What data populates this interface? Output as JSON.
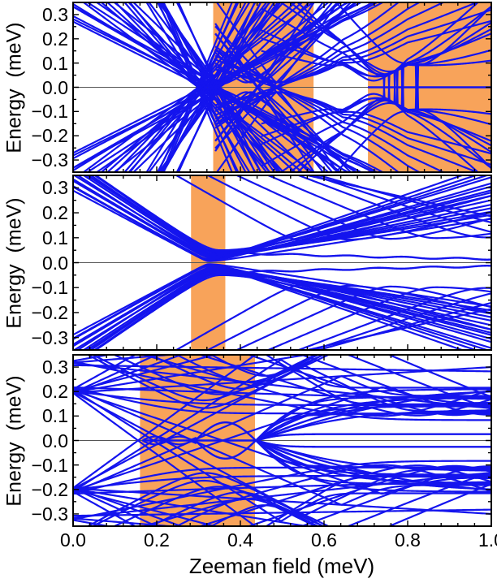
{
  "figure": {
    "xlabel": "Zeeman field (meV)",
    "ylabel": "Energy  (meV)"
  },
  "chart_data": {
    "type": "line",
    "title": "",
    "xlabel": "Zeeman field (meV)",
    "ylabel": "Energy  (meV)",
    "xlim": [
      0.0,
      1.0
    ],
    "ylim": [
      -0.35,
      0.35
    ],
    "x_ticks": [
      0.0,
      0.2,
      0.4,
      0.6,
      0.8,
      1.0
    ],
    "x_tick_labels": [
      "0.0",
      "0.2",
      "0.4",
      "0.6",
      "0.8",
      "1.0"
    ],
    "y_ticks": [
      0.3,
      0.2,
      0.1,
      0.0,
      -0.1,
      -0.2,
      -0.3
    ],
    "y_tick_labels": [
      "0.3",
      "0.2",
      "0.1",
      "0.0",
      "−0.1",
      "−0.2",
      "−0.3"
    ],
    "x_minor_step": 0.04,
    "y_minor_step": 0.05,
    "grid": "horizontal zero-energy line only",
    "legend": "none",
    "colors": {
      "line": "#1414ee",
      "shade": "#f8a35a",
      "zero_line": "#555555",
      "frame": "#000000",
      "background": "#ffffff"
    },
    "panels": [
      {
        "name": "top",
        "description": "Level fan converging to a gap closing at Vz=0.33, dense crossing levels beyond; gap reopens (white diamond near 0.63), second closing at 0.70, then topological gap ±0.09 with zero-energy Majorana line to 1.0.",
        "topological_regions": [
          [
            0.335,
            0.575
          ],
          [
            0.705,
            1.0
          ]
        ],
        "zero_energy_mode_x_range": [
          [
            0.705,
            1.0
          ]
        ],
        "gap_profile": [
          [
            0.575,
            0.0
          ],
          [
            0.645,
            0.058
          ],
          [
            0.703,
            0.004
          ],
          [
            0.8,
            0.092
          ],
          [
            1.0,
            0.085
          ]
        ],
        "families": [
          {
            "kind": "xfan",
            "x0": 0.325,
            "count": 30,
            "smin": 0.85,
            "smax": 4.2,
            "pow": 1.6,
            "x0_jitter": 0.03,
            "hyper_every": 3,
            "hyper_gap": 0.013
          },
          {
            "kind": "xfan",
            "x0": 0.46,
            "count": 14,
            "smin": 0.5,
            "smax": 2.6,
            "pow": 1.2,
            "x0_jitter": 0.05,
            "clip_min_x": 0.34,
            "hyper_every": 2,
            "hyper_gap": 0.02
          },
          {
            "kind": "xfan",
            "x0": 0.78,
            "count": 8,
            "smin": 0.4,
            "smax": 1.8,
            "pow": 1.0,
            "x0_jitter": 0.06,
            "clip_min_x": 0.45
          },
          {
            "kind": "zero",
            "x0": 0.705,
            "x1": 1.0
          }
        ]
      },
      {
        "name": "middle",
        "description": "Levels starting near ±0.3 converge to a near closing at Vz=0.335 (narrow orange band), then spread to the right leaving a clean gap with one low-energy split pair near ±0.02.",
        "topological_regions": [
          [
            0.282,
            0.364
          ]
        ],
        "zero_energy_mode_x_range": [],
        "families": [
          {
            "kind": "vcurve",
            "count": 15,
            "x0": [
              0.322,
              0.35
            ],
            "a": [
              0.9,
              1.2
            ],
            "b": [
              0.26,
              0.6
            ],
            "b_alt": true,
            "g": [
              0.006,
              0.05
            ],
            "shift": 0
          },
          {
            "kind": "vcurve",
            "count": 8,
            "x0": [
              0.55,
              1.3
            ],
            "a": [
              0.95,
              0.4
            ],
            "b": [
              0.3,
              0.5
            ],
            "g": [
              0.03,
              0.05
            ],
            "shift": 0.06
          },
          {
            "kind": "pair",
            "x0": 0.365,
            "x1": 1.0,
            "e_start": 0.04,
            "e_end": 0.015,
            "wobble": 0.003
          }
        ]
      },
      {
        "name": "bottom",
        "description": "Bundles at ±0.2 fan out; wide orange topological band 0.16-0.435 with zero mode and oscillating lens (±0.075) around zero; gap closing point at 0.435 from which levels fan out and flatten, near-zero pair ±0.025 to the right.",
        "topological_regions": [
          [
            0.16,
            0.435
          ]
        ],
        "zero_energy_mode_x_range": [
          [
            0.165,
            0.44
          ]
        ],
        "families": [
          {
            "kind": "bundlefan",
            "fx": 0.0,
            "fe": 0.205,
            "count": 14,
            "smin": -1.25,
            "smax": 0.95,
            "fe_jitter": 0.014
          },
          {
            "kind": "bundlefan",
            "fx": 0.0,
            "fe": 0.315,
            "count": 5,
            "smin": -0.35,
            "smax": 0.3,
            "fe_jitter": 0.012
          },
          {
            "kind": "arch",
            "count": 6,
            "x0": [
              0.3,
              0.44
            ],
            "m": [
              0.13,
              0.26
            ],
            "a": [
              0.8,
              1.0
            ],
            "g": 0.05
          },
          {
            "kind": "vcurve",
            "count": 6,
            "x0": [
              0.75,
              1.15
            ],
            "a": [
              0.5,
              0.75
            ],
            "b": [
              0.45,
              0.6
            ],
            "g": [
              0.04,
              0.05
            ],
            "shift": 0.06
          },
          {
            "kind": "rfan",
            "x0": 0.437,
            "count": 9,
            "cap0": 0.105,
            "dcap": 0.014,
            "smin": 0.5,
            "smax": 1.9,
            "drift": 0.02
          },
          {
            "kind": "lens",
            "x0": 0.292,
            "x1": 0.437,
            "amp": 0.074
          },
          {
            "kind": "wobblepair",
            "x0": 0.168,
            "x1": 0.295,
            "amp": 0.013,
            "freq": 55
          },
          {
            "kind": "zero",
            "x0": 0.165,
            "x1": 0.44
          },
          {
            "kind": "pairopen",
            "x0": 0.44,
            "cap": 0.026,
            "s": 0.5
          }
        ]
      }
    ]
  }
}
